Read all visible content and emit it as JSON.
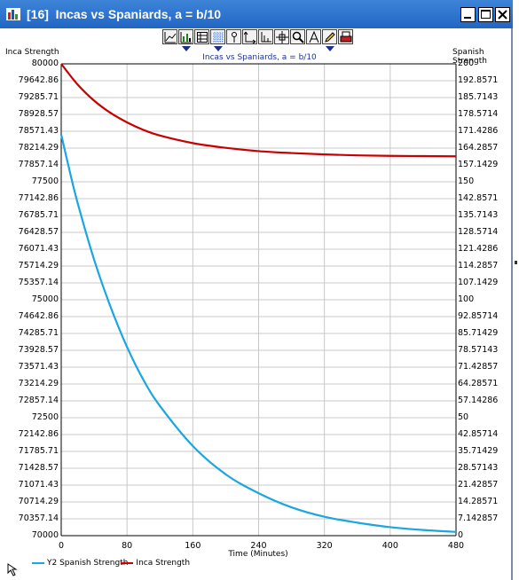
{
  "window": {
    "title": "[16]  Incas vs Spaniards, a = b/10",
    "colors": {
      "titlebar": "#2b6cc8",
      "title_text": "#ffffff"
    },
    "buttons": [
      "minimize",
      "maximize",
      "close"
    ]
  },
  "toolbar": {
    "icons": [
      "line-chart-icon",
      "bar-chart-icon",
      "table-icon",
      "grid-icon",
      "pin-icon",
      "axis-icon",
      "scale-icon",
      "crosshair-icon",
      "zoom-icon",
      "text-icon",
      "pencil-icon",
      "print-icon"
    ]
  },
  "chart_data": {
    "type": "line",
    "title": "Incas vs Spaniards, a = b/10",
    "xlabel": "Time (Minutes)",
    "ylabel_left": "Inca Strength",
    "ylabel_right": "Spanish Strength",
    "x_ticks": [
      "0",
      "80",
      "160",
      "240",
      "320",
      "400",
      "480"
    ],
    "xlim": [
      0,
      480
    ],
    "y_left_ticks": [
      "80000",
      "79642.86",
      "79285.71",
      "78928.57",
      "78571.43",
      "78214.29",
      "77857.14",
      "77500",
      "77142.86",
      "76785.71",
      "76428.57",
      "76071.43",
      "75714.29",
      "75357.14",
      "75000",
      "74642.86",
      "74285.71",
      "73928.57",
      "73571.43",
      "73214.29",
      "72857.14",
      "72500",
      "72142.86",
      "71785.71",
      "71428.57",
      "71071.43",
      "70714.29",
      "70357.14",
      "70000"
    ],
    "ylim_left": [
      70000,
      80000
    ],
    "y_right_ticks": [
      "200",
      "192.8571",
      "185.7143",
      "178.5714",
      "171.4286",
      "164.2857",
      "157.1429",
      "150",
      "142.8571",
      "135.7143",
      "128.5714",
      "121.4286",
      "114.2857",
      "107.1429",
      "100",
      "92.85714",
      "85.71429",
      "78.57143",
      "71.42857",
      "64.28571",
      "57.14286",
      "50",
      "42.85714",
      "35.71429",
      "28.57143",
      "21.42857",
      "14.28571",
      "7.142857",
      "0"
    ],
    "ylim_right": [
      0,
      200
    ],
    "grid": true,
    "legend_placement": "bottom-left",
    "series": [
      {
        "name": "Y2 Spanish Strength",
        "axis": "right",
        "color": "#1aa6e0",
        "x": [
          0,
          10,
          20,
          40,
          60,
          80,
          100,
          120,
          160,
          200,
          240,
          280,
          320,
          360,
          400,
          440,
          480
        ],
        "y": [
          170,
          155,
          141,
          117,
          97,
          80,
          66,
          55,
          38,
          26,
          18,
          12,
          8,
          5.5,
          3.6,
          2.4,
          1.6
        ]
      },
      {
        "name": "Inca Strength",
        "axis": "left",
        "color": "#c80000",
        "x": [
          0,
          20,
          40,
          60,
          80,
          100,
          120,
          160,
          200,
          240,
          280,
          320,
          360,
          400,
          440,
          480
        ],
        "y": [
          80000,
          79560,
          79220,
          78960,
          78760,
          78600,
          78480,
          78320,
          78220,
          78150,
          78110,
          78080,
          78060,
          78050,
          78045,
          78040
        ]
      }
    ]
  }
}
